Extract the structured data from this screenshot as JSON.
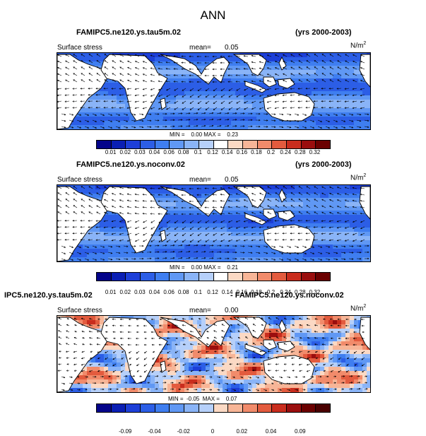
{
  "figure": {
    "title": "ANN"
  },
  "panels": [
    {
      "case_title": "FAMIPC5.ne120.ys.tau5m.02",
      "years": "(yrs 2000-2003)",
      "variable": "Surface stress",
      "mean_label": "mean=",
      "mean_value": "0.05",
      "units_base": "N/m",
      "units_exp": "2",
      "min_label": "MIN =",
      "min_value": "0.00",
      "max_label": "MAX =",
      "max_value": "0.23",
      "field_type": "magnitude"
    },
    {
      "case_title": "FAMIPC5.ne120.ys.noconv.02",
      "years": "(yrs 2000-2003)",
      "variable": "Surface stress",
      "mean_label": "mean=",
      "mean_value": "0.05",
      "units_base": "N/m",
      "units_exp": "2",
      "min_label": "MIN =",
      "min_value": "0.00",
      "max_label": "MAX =",
      "max_value": "0.21",
      "field_type": "magnitude"
    },
    {
      "case_title_left": "IPC5.ne120.ys.tau5m.02",
      "case_title_right": "- FAMIPC5.ne120.ys.noconv.02",
      "variable": "Surface stress",
      "mean_label": "mean=",
      "mean_value": "0.00",
      "units_base": "N/m",
      "units_exp": "2",
      "min_label": "MIN =",
      "min_value": "-0.05",
      "max_label": "MAX =",
      "max_value": "0.07",
      "field_type": "difference"
    }
  ],
  "colorbar_abs": {
    "labels": [
      "0.01",
      "0.02",
      "0.03",
      "0.04",
      "0.06",
      "0.08",
      "0.1",
      "0.12",
      "0.14",
      "0.16",
      "0.18",
      "0.2",
      "0.24",
      "0.28",
      "0.32"
    ],
    "colors": [
      "#04048a",
      "#0a1fb4",
      "#1d3fd8",
      "#2c5ee6",
      "#3f7ef0",
      "#6098f4",
      "#8ab4f7",
      "#b6d0fa",
      "#ffffff",
      "#fbd9c4",
      "#f7b597",
      "#f18b6b",
      "#e35b3e",
      "#c92d1e",
      "#9a0e0e",
      "#6b0000"
    ]
  },
  "colorbar_diff": {
    "labels": [
      "-0.09",
      "-0.04",
      "-0.02",
      "0",
      "0.02",
      "0.04",
      "0.09"
    ],
    "colors": [
      "#04048a",
      "#0a1fb4",
      "#1d3fd8",
      "#2c5ee6",
      "#3f7ef0",
      "#6098f4",
      "#8ab4f7",
      "#b6d0fa",
      "#fbd9c4",
      "#f7b597",
      "#f18b6b",
      "#e35b3e",
      "#c92d1e",
      "#9a0e0e",
      "#6b0000",
      "#4a0000"
    ]
  }
}
